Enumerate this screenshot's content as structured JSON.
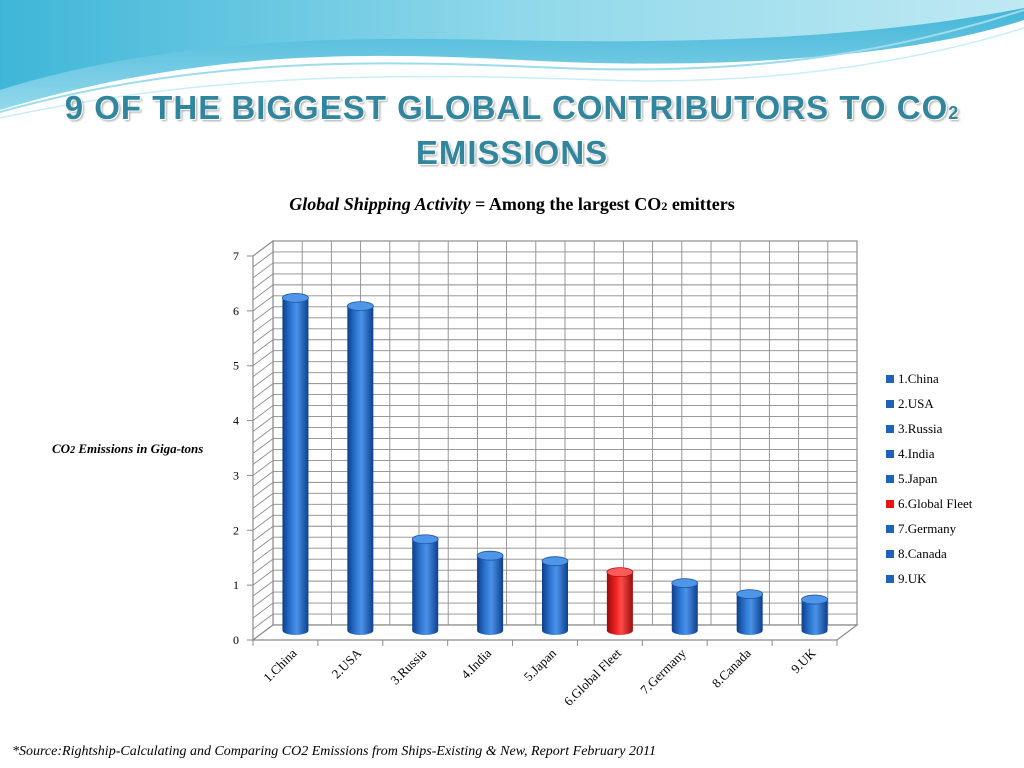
{
  "slide": {
    "title_line1": "9 of the biggest global contributors to CO",
    "title_sub": "2",
    "title_line2": "emissions",
    "source": "*Source:Rightship-Calculating and Comparing CO2 Emissions from Ships-Existing &  New, Report February 2011"
  },
  "chart_title": {
    "italic": "Global Shipping Activity",
    "rest": " = Among the largest CO",
    "sub": "2",
    "end": " emitters"
  },
  "ylabel": {
    "prefix": "CO",
    "sub": "2",
    "rest": " Emissions in Giga-tons"
  },
  "colors": {
    "bar": "#1f63b8",
    "highlight": "#e81414",
    "title": "#31859c"
  },
  "chart_data": {
    "type": "bar",
    "categories": [
      "1.China",
      "2.USA",
      "3.Russia",
      "4.India",
      "5.Japan",
      "6.Global Fleet",
      "7.Germany",
      "8.Canada",
      "9.UK"
    ],
    "values": [
      6.1,
      5.95,
      1.7,
      1.4,
      1.3,
      1.1,
      0.9,
      0.7,
      0.6
    ],
    "highlight_index": 5,
    "yticks": [
      0,
      1,
      2,
      3,
      4,
      5,
      6,
      7
    ],
    "ylim": [
      0,
      7
    ],
    "grid": true,
    "legend_position": "right",
    "legend": [
      "1.China",
      "2.USA",
      "3.Russia",
      "4.India",
      "5.Japan",
      "6.Global Fleet",
      "7.Germany",
      "8.Canada",
      "9.UK"
    ]
  }
}
